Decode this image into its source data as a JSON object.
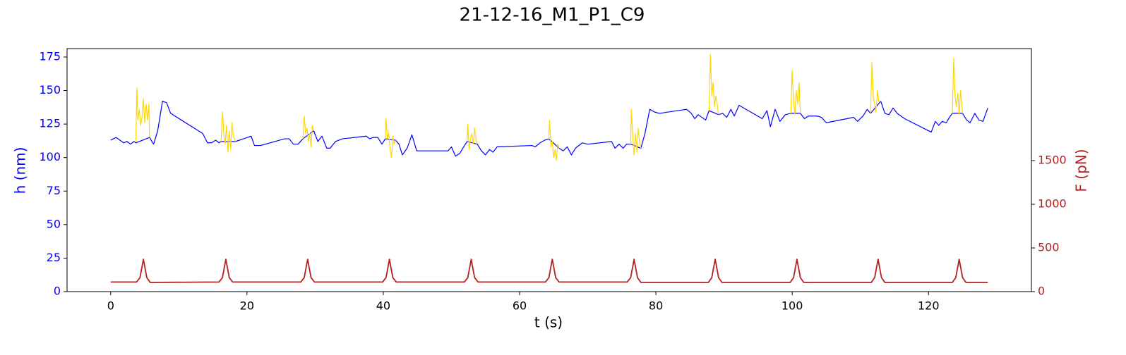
{
  "chart_data": {
    "type": "line",
    "title": "21-12-16_M1_P1_C9",
    "xlabel": "t (s)",
    "ylabel": "h (nm)",
    "y2label": "F (pN)",
    "y_color": "#0000ff",
    "y2_color": "#b22222",
    "xlim": [
      -6.4,
      135.1
    ],
    "xticks": [
      0,
      20,
      40,
      60,
      80,
      100,
      120
    ],
    "ylim": [
      0,
      181.3
    ],
    "yticks": [
      0,
      25,
      50,
      75,
      100,
      125,
      150,
      175
    ],
    "y2lim": [
      0,
      2782
    ],
    "y2ticks": [
      0,
      500,
      1000,
      1500
    ],
    "series": [
      {
        "color": "#0000ff",
        "x": [
          0,
          0.8,
          1.9,
          2.4,
          2.9,
          3.4,
          3.7,
          5.7,
          6.3,
          6.9,
          7.6,
          8.2,
          8.8,
          13.5,
          14.2,
          14.8,
          15.4,
          15.9,
          16.2,
          18.3,
          19.5,
          20.6,
          21.1,
          22,
          25.5,
          26.2,
          26.8,
          27.5,
          28.2,
          29.8,
          30.4,
          31,
          31.7,
          32.2,
          33,
          34,
          37.5,
          38,
          38.5,
          39.2,
          39.8,
          40.3,
          41.8,
          42.3,
          42.8,
          43.5,
          44.2,
          44.9,
          49.5,
          50,
          50.6,
          51.2,
          51.8,
          52.3,
          53.8,
          54.4,
          55,
          55.6,
          56.1,
          56.7,
          61.8,
          62.3,
          63,
          63.7,
          64.3,
          65.8,
          66.4,
          67,
          67.6,
          68.2,
          69.2,
          70,
          73.5,
          74,
          74.6,
          75.2,
          75.7,
          76.3,
          77.8,
          78.4,
          79.1,
          79.8,
          80.5,
          84.5,
          85.2,
          85.7,
          86.2,
          87.3,
          87.8,
          89.2,
          89.8,
          90.4,
          91,
          91.5,
          92.2,
          95.6,
          96.3,
          96.8,
          97.5,
          98.2,
          99,
          99.8,
          101.2,
          101.8,
          102.4,
          103.1,
          103.7,
          104.3,
          105,
          109,
          109.6,
          110.4,
          111,
          111.5,
          113,
          113.6,
          114.2,
          114.8,
          115.4,
          116.5,
          120.4,
          121,
          121.5,
          122,
          122.6,
          123.2,
          123.5,
          125,
          125.6,
          126.1,
          126.8,
          127.4,
          128,
          128.7
        ],
        "values": [
          113,
          115,
          111,
          112,
          110,
          112,
          111,
          115,
          110,
          120,
          142,
          141,
          133,
          118,
          111,
          111,
          113,
          111,
          112,
          112,
          114,
          116,
          109,
          109,
          114,
          114,
          110,
          110,
          114,
          120,
          112,
          116,
          107,
          107,
          112,
          114,
          116,
          114,
          115,
          115,
          110,
          114,
          113,
          110,
          102,
          107,
          117,
          105,
          105,
          108,
          101,
          103,
          108,
          112,
          110,
          105,
          102,
          106,
          104,
          108,
          109,
          108,
          111,
          113,
          114,
          107,
          105,
          108,
          102,
          107,
          111,
          110,
          112,
          107,
          110,
          107,
          110,
          110,
          107,
          118,
          136,
          134,
          133,
          136,
          133,
          129,
          132,
          128,
          135,
          132,
          133,
          130,
          136,
          131,
          139,
          129,
          135,
          123,
          136,
          127,
          132,
          133,
          133,
          129,
          131,
          131,
          131,
          130,
          126,
          130,
          127,
          131,
          136,
          133,
          142,
          133,
          132,
          137,
          133,
          129,
          119,
          127,
          124,
          127,
          126,
          131,
          133,
          133,
          128,
          126,
          133,
          128,
          127,
          137
        ]
      },
      {
        "color": "#ffd700",
        "x": [
          3.7,
          3.85,
          4,
          4.2,
          4.4,
          4.6,
          4.8,
          5,
          5.2,
          5.4,
          5.6,
          5.7,
          10,
          16.2,
          16.4,
          16.6,
          16.8,
          17,
          17.2,
          17.4,
          17.6,
          17.8,
          18,
          18.3,
          23,
          28.2,
          28.4,
          28.6,
          28.8,
          29,
          29.2,
          29.4,
          29.6,
          29.8,
          35,
          40.3,
          40.4,
          40.6,
          40.8,
          41,
          41.2,
          41.4,
          41.6,
          41.8,
          47,
          52.3,
          52.4,
          52.6,
          52.8,
          53,
          53.2,
          53.4,
          53.6,
          53.8,
          59,
          64.3,
          64.4,
          64.6,
          64.8,
          65,
          65.2,
          65.4,
          65.6,
          65.8,
          71,
          76.3,
          76.4,
          76.6,
          76.8,
          77,
          77.2,
          77.4,
          77.6,
          77.8,
          83,
          87.8,
          88,
          88.2,
          88.4,
          88.6,
          88.8,
          89,
          89.2,
          94,
          99.8,
          100,
          100.2,
          100.4,
          100.6,
          100.8,
          101,
          101.2,
          106,
          111.5,
          111.7,
          111.9,
          112.1,
          112.3,
          112.5,
          112.7,
          113,
          118,
          123.5,
          123.7,
          123.9,
          124.1,
          124.3,
          124.5,
          124.7,
          125
        ],
        "values": [
          112,
          152,
          128,
          136,
          124,
          130,
          144,
          126,
          140,
          128,
          140,
          115,
          null,
          112,
          134,
          118,
          110,
          124,
          104,
          120,
          106,
          126,
          116,
          112,
          null,
          114,
          131,
          118,
          122,
          112,
          118,
          108,
          124,
          120,
          null,
          114,
          129,
          114,
          118,
          106,
          100,
          116,
          110,
          113,
          null,
          112,
          125,
          106,
          114,
          118,
          110,
          122,
          114,
          110,
          null,
          114,
          128,
          108,
          112,
          100,
          106,
          98,
          110,
          107,
          null,
          110,
          136,
          116,
          102,
          118,
          104,
          122,
          112,
          107,
          null,
          135,
          177,
          146,
          156,
          138,
          146,
          140,
          132,
          null,
          133,
          165,
          142,
          132,
          150,
          140,
          156,
          133,
          null,
          133,
          171,
          146,
          140,
          134,
          150,
          142,
          142,
          null,
          133,
          174,
          146,
          138,
          148,
          132,
          150,
          133
        ]
      },
      {
        "color": "#b22222",
        "axis": "y2",
        "x": [
          0,
          3.8,
          4.3,
          4.8,
          5.3,
          5.8,
          15.9,
          16.4,
          16.9,
          17.4,
          17.9,
          27.9,
          28.4,
          28.9,
          29.4,
          29.9,
          39.9,
          40.4,
          40.9,
          41.4,
          41.9,
          51.9,
          52.4,
          52.9,
          53.4,
          53.9,
          63.8,
          64.3,
          64.8,
          65.3,
          65.8,
          75.8,
          76.3,
          76.8,
          77.3,
          77.8,
          87.7,
          88.2,
          88.7,
          89.2,
          89.7,
          99.7,
          100.2,
          100.7,
          101.2,
          101.7,
          111.6,
          112.1,
          112.6,
          113.1,
          113.6,
          123.5,
          124,
          124.5,
          125,
          125.5,
          128.7
        ],
        "values": [
          110,
          110,
          160,
          370,
          160,
          105,
          110,
          160,
          370,
          160,
          110,
          110,
          160,
          370,
          160,
          110,
          110,
          160,
          370,
          160,
          110,
          110,
          160,
          370,
          160,
          110,
          110,
          160,
          370,
          160,
          110,
          110,
          160,
          370,
          160,
          105,
          105,
          160,
          370,
          160,
          105,
          105,
          160,
          370,
          160,
          105,
          105,
          160,
          370,
          160,
          105,
          105,
          160,
          370,
          160,
          105,
          105
        ]
      }
    ]
  }
}
